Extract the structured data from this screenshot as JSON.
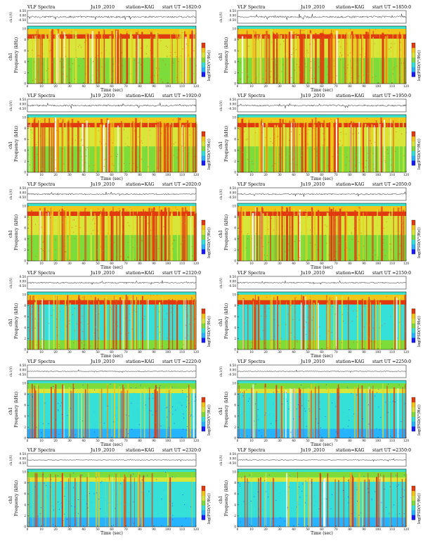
{
  "colors": {
    "scale": [
      "#1a1aff",
      "#26b3ff",
      "#35e0d8",
      "#7ddc3a",
      "#d8e63a",
      "#f2c616",
      "#e23a10"
    ],
    "background_band": "#3ee0c8",
    "trace": "#111111"
  },
  "common": {
    "title": "VLF Spectra",
    "date": "Ju19 ,2010",
    "station": "station=KAG",
    "ut_label": "start  UT  =",
    "time_label": "Time  (sec)",
    "freq_label": "Frequency  (kHz)",
    "ch_label": "ch1",
    "top_axis_label": "ch.1(V)",
    "top_ticks": [
      "0.50",
      "0.00",
      "-0.50"
    ],
    "colorbar_label": "log(PSD(V²/Hz))"
  },
  "panels": [
    {
      "ut": "1820:0",
      "activity": 0.82
    },
    {
      "ut": "1850:0",
      "activity": 0.8
    },
    {
      "ut": "1920:0",
      "activity": 0.72
    },
    {
      "ut": "1950:0",
      "activity": 0.7
    },
    {
      "ut": "2020:0",
      "activity": 0.6
    },
    {
      "ut": "2050:0",
      "activity": 0.56
    },
    {
      "ut": "2120:0",
      "activity": 0.5
    },
    {
      "ut": "2150:0",
      "activity": 0.42
    },
    {
      "ut": "2220:0",
      "activity": 0.22
    },
    {
      "ut": "2250:0",
      "activity": 0.18
    },
    {
      "ut": "2320:0",
      "activity": 0.16
    },
    {
      "ut": "2350:0",
      "activity": 0.14
    }
  ],
  "chart_data": {
    "type": "heatmap",
    "x_ticks": [
      "0",
      "10",
      "20",
      "30",
      "40",
      "50",
      "60",
      "70",
      "80",
      "90",
      "100",
      "110",
      "120"
    ],
    "y_ticks": [
      "0",
      "2",
      "4",
      "6",
      "8",
      "10"
    ],
    "xlim": [
      0,
      120
    ],
    "ylim": [
      0,
      10
    ],
    "xlabel": "Time  (sec)",
    "ylabel": "Frequency  (kHz)",
    "colorbar": "log(PSD(V²/Hz))"
  }
}
